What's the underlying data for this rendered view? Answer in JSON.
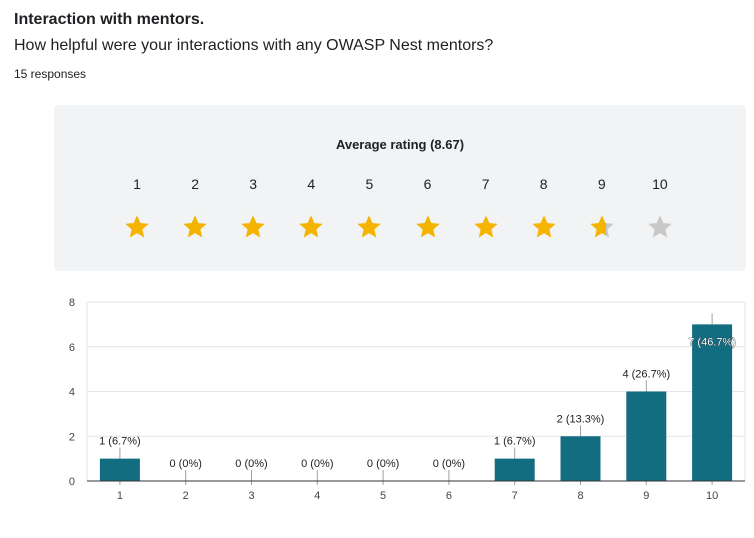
{
  "question": {
    "title": "Interaction with mentors.",
    "text": "How helpful were your interactions with any OWASP Nest mentors?",
    "responses": "15 responses"
  },
  "rating": {
    "title": "Average rating (8.67)",
    "average": 8.67,
    "scale": [
      "1",
      "2",
      "3",
      "4",
      "5",
      "6",
      "7",
      "8",
      "9",
      "10"
    ]
  },
  "colors": {
    "bar": "#136d80",
    "star_on": "#f4b400",
    "star_off": "#c8c8c8",
    "grid": "#e6e6e6"
  },
  "chart_data": {
    "type": "bar",
    "categories": [
      "1",
      "2",
      "3",
      "4",
      "5",
      "6",
      "7",
      "8",
      "9",
      "10"
    ],
    "values": [
      1,
      0,
      0,
      0,
      0,
      0,
      1,
      2,
      4,
      7
    ],
    "data_labels": [
      "1 (6.7%)",
      "0 (0%)",
      "0 (0%)",
      "0 (0%)",
      "0 (0%)",
      "0 (0%)",
      "1 (6.7%)",
      "2 (13.3%)",
      "4 (26.7%)",
      "7 (46.7%)"
    ],
    "yticks": [
      "0",
      "2",
      "4",
      "6",
      "8"
    ],
    "ylim": [
      0,
      8
    ],
    "grid": true,
    "xlabel": "",
    "ylabel": ""
  }
}
